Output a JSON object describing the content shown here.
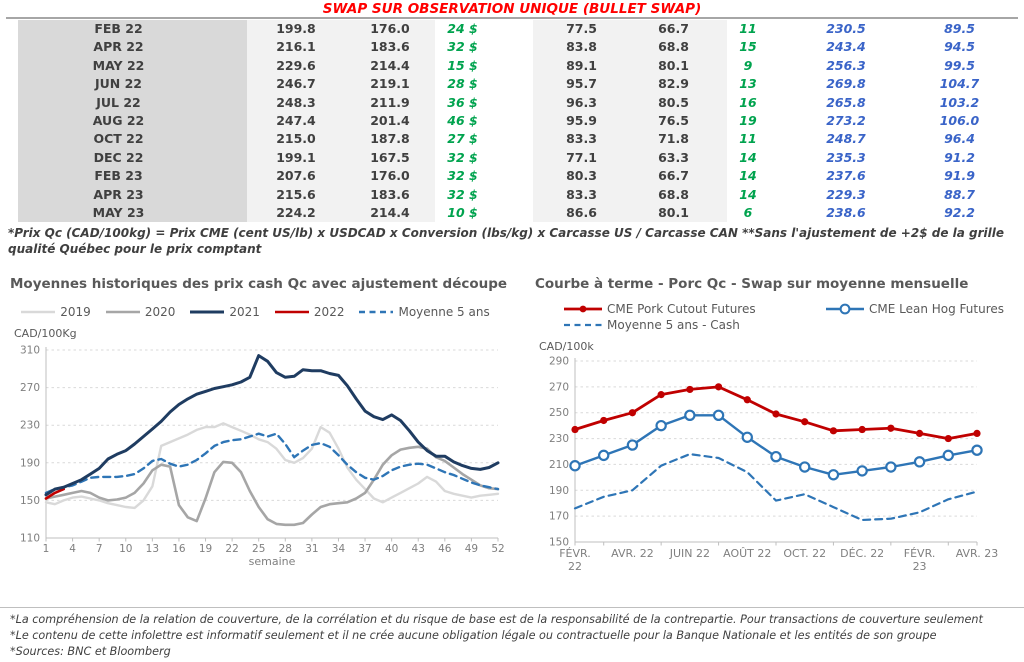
{
  "title": "SWAP SUR OBSERVATION UNIQUE (BULLET SWAP)",
  "colors": {
    "title_red": "#ff0000",
    "table_green": "#00a34e",
    "table_blue": "#3a64c8",
    "navy_2021": "#1f3c61",
    "gray_2020": "#a6a6a6",
    "lightgray_2019": "#d9d9d9",
    "red_2022": "#c00000",
    "steel_blue": "#2e75b6"
  },
  "table": {
    "rows": [
      [
        "FEB 22",
        "199.8",
        "176.0",
        "24 $",
        "77.5",
        "66.7",
        "11",
        "230.5",
        "89.5"
      ],
      [
        "APR 22",
        "216.1",
        "183.6",
        "32 $",
        "83.8",
        "68.8",
        "15",
        "243.4",
        "94.5"
      ],
      [
        "MAY 22",
        "229.6",
        "214.4",
        "15 $",
        "89.1",
        "80.1",
        "9",
        "256.3",
        "99.5"
      ],
      [
        "JUN 22",
        "246.7",
        "219.1",
        "28 $",
        "95.7",
        "82.9",
        "13",
        "269.8",
        "104.7"
      ],
      [
        "JUL 22",
        "248.3",
        "211.9",
        "36 $",
        "96.3",
        "80.5",
        "16",
        "265.8",
        "103.2"
      ],
      [
        "AUG 22",
        "247.4",
        "201.4",
        "46 $",
        "95.9",
        "76.5",
        "19",
        "273.2",
        "106.0"
      ],
      [
        "OCT 22",
        "215.0",
        "187.8",
        "27 $",
        "83.3",
        "71.8",
        "11",
        "248.7",
        "96.4"
      ],
      [
        "DEC 22",
        "199.1",
        "167.5",
        "32 $",
        "77.1",
        "63.3",
        "14",
        "235.3",
        "91.2"
      ],
      [
        "FEB 23",
        "207.6",
        "176.0",
        "32 $",
        "80.3",
        "66.7",
        "14",
        "237.6",
        "91.9"
      ],
      [
        "APR 23",
        "215.6",
        "183.6",
        "32 $",
        "83.3",
        "68.8",
        "14",
        "229.3",
        "88.7"
      ],
      [
        "MAY 23",
        "224.2",
        "214.4",
        "10 $",
        "86.6",
        "80.1",
        "6",
        "238.6",
        "92.2"
      ]
    ]
  },
  "table_note": "*Prix Qc (CAD/100kg) = Prix CME (cent US/lb) x USDCAD x Conversion (lbs/kg) x Carcasse US / Carcasse CAN **Sans l'ajustement de +2$ de la grille qualité Québec pour le prix comptant",
  "chart_data": [
    {
      "type": "line",
      "title": "Moyennes historiques des prix cash Qc avec ajustement découpe",
      "ylabel": "CAD/100Kg",
      "xlabel": "semaine",
      "ylim": [
        110,
        310
      ],
      "yticks": [
        110,
        150,
        190,
        230,
        270,
        310
      ],
      "xticks": [
        1,
        4,
        7,
        10,
        13,
        16,
        19,
        22,
        25,
        28,
        31,
        34,
        37,
        40,
        43,
        46,
        49,
        52
      ],
      "x_range": [
        1,
        52
      ],
      "grid": "dashed horizontal",
      "legend_position": "top",
      "legend": [
        "2019",
        "2020",
        "2021",
        "2022",
        "Moyenne 5 ans"
      ],
      "series": [
        {
          "name": "2019",
          "color": "#d9d9d9",
          "width": 2.4,
          "values": [
            148,
            146,
            150,
            153,
            154,
            152,
            150,
            147,
            145,
            143,
            142,
            150,
            165,
            208,
            212,
            216,
            220,
            225,
            228,
            228,
            232,
            228,
            224,
            220,
            215,
            212,
            205,
            193,
            190,
            195,
            205,
            228,
            222,
            205,
            185,
            172,
            162,
            152,
            148,
            153,
            158,
            163,
            168,
            175,
            170,
            160,
            157,
            155,
            153,
            155,
            156,
            157
          ]
        },
        {
          "name": "2020",
          "color": "#a6a6a6",
          "width": 2.6,
          "values": [
            152,
            154,
            156,
            158,
            160,
            158,
            153,
            150,
            151,
            153,
            158,
            168,
            182,
            188,
            186,
            145,
            132,
            128,
            152,
            180,
            191,
            190,
            180,
            160,
            143,
            130,
            125,
            124,
            124,
            126,
            135,
            143,
            146,
            147,
            148,
            152,
            158,
            172,
            188,
            198,
            204,
            206,
            207,
            205,
            196,
            192,
            185,
            178,
            172,
            166,
            163,
            162
          ]
        },
        {
          "name": "2022",
          "color": "#c00000",
          "width": 2.6,
          "values": [
            152,
            158,
            162
          ]
        },
        {
          "name": "Moyenne 5 ans",
          "color": "#2e75b6",
          "width": 2.4,
          "dash": "7 5",
          "values": [
            158,
            162,
            164,
            166,
            170,
            174,
            175,
            175,
            175,
            176,
            178,
            184,
            192,
            194,
            189,
            186,
            188,
            193,
            200,
            208,
            212,
            214,
            215,
            218,
            221,
            218,
            221,
            210,
            196,
            203,
            209,
            211,
            207,
            198,
            188,
            180,
            174,
            172,
            176,
            182,
            186,
            188,
            189,
            188,
            184,
            180,
            177,
            173,
            169,
            166,
            164,
            162
          ]
        },
        {
          "name": "2021",
          "color": "#1f3c61",
          "width": 3,
          "values": [
            156,
            162,
            164,
            168,
            172,
            178,
            184,
            194,
            199,
            203,
            210,
            218,
            226,
            234,
            244,
            252,
            258,
            263,
            266,
            269,
            271,
            273,
            276,
            281,
            304,
            298,
            286,
            281,
            282,
            289,
            288,
            288,
            285,
            283,
            272,
            258,
            245,
            239,
            236,
            241,
            235,
            224,
            212,
            203,
            197,
            197,
            191,
            187,
            184,
            183,
            185,
            190
          ]
        }
      ]
    },
    {
      "type": "line",
      "title": "Courbe à terme - Porc Qc - Swap sur moyenne mensuelle",
      "ylabel": "CAD/100k",
      "ylim": [
        150,
        290
      ],
      "yticks": [
        150,
        170,
        190,
        210,
        230,
        250,
        270,
        290
      ],
      "x_labels": [
        "FÉVR.\n22",
        "",
        "AVR. 22",
        "",
        "JUIN 22",
        "",
        "AOÛT 22",
        "",
        "OCT. 22",
        "",
        "DÉC. 22",
        "",
        "FÉVR.\n23",
        "",
        "AVR. 23"
      ],
      "grid": "dashed horizontal",
      "legend_position": "top",
      "legend_rows": [
        [
          "CME Pork Cutout Futures",
          "CME Lean Hog Futures"
        ],
        [
          "Moyenne 5 ans - Cash"
        ]
      ],
      "series": [
        {
          "name": "Moyenne 5 ans - Cash",
          "color": "#2e75b6",
          "width": 2.2,
          "dash": "7 5",
          "values": [
            176,
            185,
            190,
            209,
            218,
            215,
            204,
            182,
            187,
            177,
            167,
            168,
            173,
            183,
            189
          ]
        },
        {
          "name": "CME Pork Cutout Futures",
          "color": "#c00000",
          "width": 2.8,
          "marker": "filled",
          "values": [
            237,
            244,
            250,
            264,
            268,
            270,
            260,
            249,
            243,
            236,
            237,
            238,
            234,
            230,
            234
          ]
        },
        {
          "name": "CME Lean Hog Futures",
          "color": "#2e75b6",
          "width": 2.4,
          "marker": "open",
          "values": [
            209,
            217,
            225,
            240,
            248,
            248,
            231,
            216,
            208,
            202,
            205,
            208,
            212,
            217,
            221
          ]
        }
      ]
    }
  ],
  "footnotes": [
    "*La compréhension de la relation de couverture, de la corrélation et du risque de base est de la responsabilité de la contrepartie. Pour transactions de couverture seulement",
    "*Le contenu de cette infolettre est informatif seulement et il ne crée aucune obligation légale ou contractuelle pour la Banque Nationale et les entités de son groupe",
    "*Sources: BNC et Bloomberg"
  ]
}
